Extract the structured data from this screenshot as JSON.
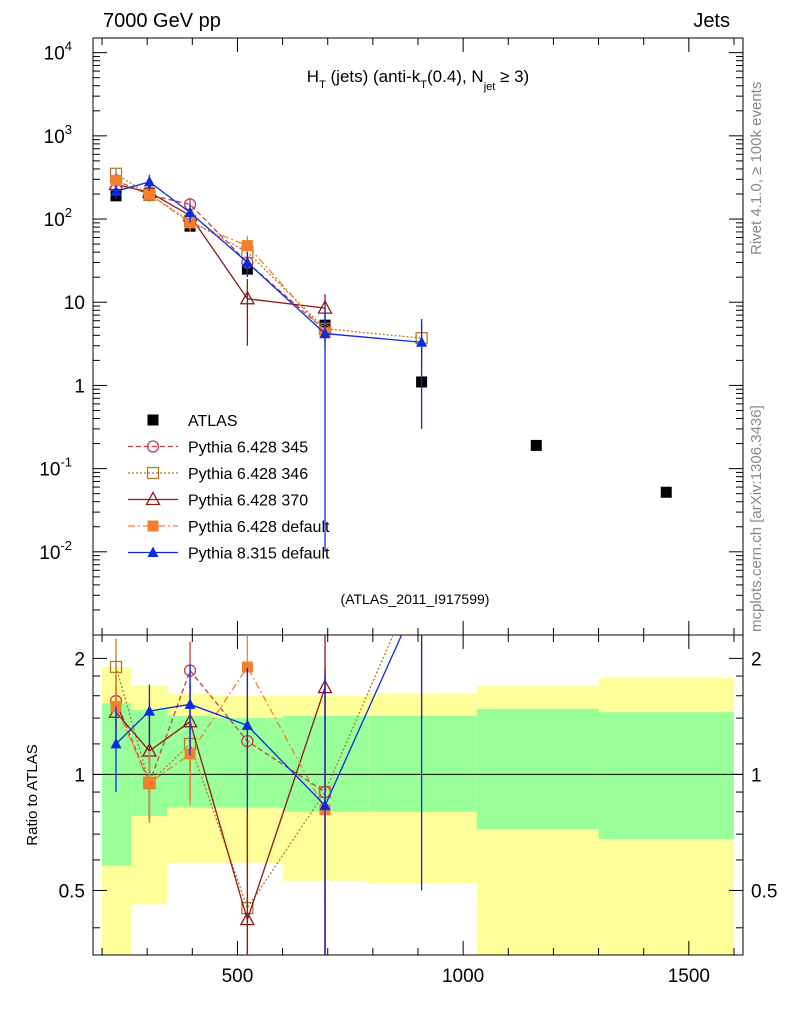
{
  "header": {
    "left": "7000 GeV pp",
    "right": "Jets"
  },
  "side_labels": {
    "rivet": "Rivet 4.1.0, ≥ 100k events",
    "mcplots": "mcplots.cern.ch [arXiv:1306.3436]"
  },
  "chart_data": {
    "type": "scatter",
    "title": "H_T (jets) (anti-k_T(0.4), N_jet ≥ 3)",
    "title_parts": {
      "h": "H",
      "t_sub": "T",
      "jets": " (jets) (anti-k",
      "kt_sub": "T",
      "r": "(0.4), N",
      "jet_sub": "jet",
      "ge3": " ≥ 3)"
    },
    "analysis_id": "(ATLAS_2011_I917599)",
    "xlim": [
      180,
      1620
    ],
    "ylim_main": [
      0.001,
      15000
    ],
    "ylim_ratio": [
      0.34,
      2.3
    ],
    "x_ticks": [
      "500",
      "1000",
      "1500"
    ],
    "y_ticks_main": [
      "10^4",
      "10^3",
      "10^2",
      "10",
      "1",
      "10^-1",
      "10^-2"
    ],
    "y_ticks_ratio": [
      "2",
      "1",
      "0.5"
    ],
    "ratio_ylabel": "Ratio to ATLAS",
    "bins": [
      [
        200,
        265
      ],
      [
        265,
        345
      ],
      [
        345,
        445
      ],
      [
        445,
        600
      ],
      [
        600,
        790
      ],
      [
        790,
        1030
      ],
      [
        1030,
        1300
      ],
      [
        1300,
        1600
      ]
    ],
    "ratio_band_inner": [
      [
        0.58,
        1.53
      ],
      [
        0.78,
        1.47
      ],
      [
        0.82,
        1.42
      ],
      [
        0.82,
        1.4
      ],
      [
        0.8,
        1.42
      ],
      [
        0.8,
        1.42
      ],
      [
        0.72,
        1.48
      ],
      [
        0.68,
        1.45
      ]
    ],
    "ratio_band_outer": [
      [
        0.34,
        1.9
      ],
      [
        0.46,
        1.7
      ],
      [
        0.59,
        1.62
      ],
      [
        0.59,
        1.6
      ],
      [
        0.53,
        1.6
      ],
      [
        0.52,
        1.62
      ],
      [
        0.34,
        1.7
      ],
      [
        0.34,
        1.78
      ]
    ],
    "series": [
      {
        "name": "ATLAS",
        "legend": "ATLAS",
        "color": "#000000",
        "marker": "square-filled",
        "line": "none",
        "x": [
          231,
          305,
          395,
          522,
          694,
          908,
          1162,
          1450
        ],
        "y": [
          190,
          205,
          82,
          25,
          5.3,
          1.1,
          0.19,
          0.052
        ]
      },
      {
        "name": "Pythia 6.428 345",
        "legend": "Pythia 6.428 345",
        "color": "#c0404a",
        "marker": "circle-open",
        "line": "dashed",
        "x": [
          231,
          305,
          395,
          522,
          694
        ],
        "y": [
          290,
          195,
          150,
          30,
          4.6
        ],
        "yerr": [
          40,
          30,
          30,
          5,
          1
        ],
        "ratio": [
          1.55,
          0.95,
          1.86,
          1.22,
          0.9
        ],
        "ratio_err": [
          0.25,
          0.18,
          0.35,
          0.35,
          1.0
        ]
      },
      {
        "name": "Pythia 6.428 346",
        "legend": "Pythia 6.428 346",
        "color": "#b07a2e",
        "marker": "square-open",
        "line": "dotted",
        "x": [
          231,
          305,
          395,
          522,
          694,
          908
        ],
        "y": [
          350,
          195,
          95,
          40,
          4.8,
          3.7
        ],
        "yerr": [
          60,
          35,
          20,
          10,
          1.5,
          2
        ],
        "ratio": [
          1.9,
          0.95,
          1.2,
          0.45,
          0.9,
          3.4
        ],
        "ratio_err": [
          0.35,
          0.18,
          0.35,
          0.35,
          0.9,
          2.0
        ]
      },
      {
        "name": "Pythia 6.428 370",
        "legend": "Pythia 6.428 370",
        "color": "#8b1a1a",
        "marker": "triangle-open",
        "line": "solid",
        "x": [
          231,
          305,
          395,
          522,
          694
        ],
        "y": [
          260,
          210,
          110,
          11,
          8.5
        ],
        "yerr": [
          40,
          30,
          25,
          8,
          4
        ],
        "ratio": [
          1.45,
          1.15,
          1.37,
          0.42,
          1.68
        ],
        "ratio_err": [
          0.25,
          0.4,
          0.35,
          0.38,
          1.5
        ]
      },
      {
        "name": "Pythia 6.428 default",
        "legend": "Pythia 6.428 default",
        "color": "#f47f2e",
        "marker": "square-filled",
        "line": "dashdot",
        "x": [
          231,
          305,
          395,
          522,
          694
        ],
        "y": [
          290,
          200,
          90,
          48,
          4.3
        ],
        "yerr": [
          45,
          30,
          20,
          15,
          1.5
        ],
        "ratio": [
          1.5,
          0.95,
          1.13,
          1.9,
          0.81
        ],
        "ratio_err": [
          0.2,
          0.2,
          0.3,
          0.9,
          0.5
        ]
      },
      {
        "name": "Pythia 8.315 default",
        "legend": "Pythia 8.315 default",
        "color": "#0a2be0",
        "marker": "triangle-filled",
        "line": "solid",
        "x": [
          231,
          305,
          395,
          522,
          694,
          908
        ],
        "y": [
          215,
          280,
          120,
          30,
          4.2,
          3.3
        ],
        "yerr": [
          40,
          60,
          30,
          10,
          4.19,
          3.0
        ],
        "ratio": [
          1.2,
          1.46,
          1.52,
          1.34,
          0.83,
          3.0
        ],
        "ratio_err": [
          0.3,
          0.25,
          0.4,
          0.55,
          1.0,
          2.5
        ]
      }
    ]
  }
}
